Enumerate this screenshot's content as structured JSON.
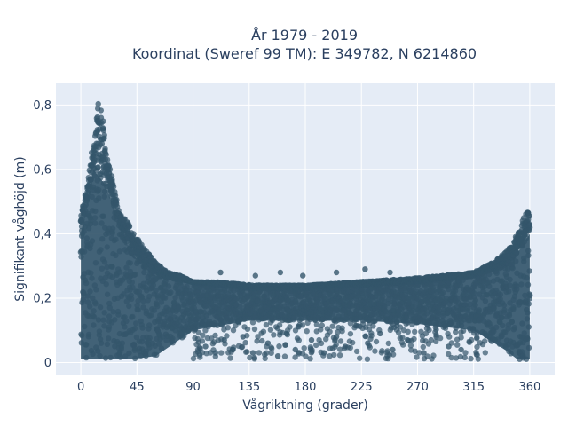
{
  "chart_data": {
    "type": "scatter",
    "title_line1": "År 1979 - 2019",
    "title_line2": "Koordinat (Sweref 99 TM): E 349782, N 6214860",
    "xlabel": "Vågriktning (grader)",
    "ylabel": "Signifikant våghöjd (m)",
    "xlim": [
      -20,
      380
    ],
    "ylim": [
      -0.04,
      0.87
    ],
    "xticks": [
      0,
      45,
      90,
      135,
      180,
      225,
      270,
      315,
      360
    ],
    "xtick_labels": [
      "0",
      "45",
      "90",
      "135",
      "180",
      "225",
      "270",
      "315",
      "360"
    ],
    "yticks": [
      0,
      0.2,
      0.4,
      0.6,
      0.8
    ],
    "ytick_labels": [
      "0",
      "0,2",
      "0,4",
      "0,6",
      "0,8"
    ],
    "grid": true,
    "colors": {
      "plot_background": "#e5ecf6",
      "grid": "#ffffff",
      "marker": "#34566b",
      "text": "#2a3f5f"
    },
    "upper_envelope": {
      "x": [
        0,
        5,
        10,
        13,
        15,
        17,
        20,
        25,
        30,
        40,
        50,
        60,
        70,
        80,
        90,
        110,
        140,
        180,
        220,
        260,
        290,
        315,
        330,
        340,
        345,
        350,
        355,
        358,
        360
      ],
      "y": [
        0.46,
        0.55,
        0.68,
        0.78,
        0.83,
        0.8,
        0.67,
        0.57,
        0.48,
        0.42,
        0.36,
        0.31,
        0.28,
        0.27,
        0.25,
        0.25,
        0.24,
        0.24,
        0.25,
        0.26,
        0.27,
        0.28,
        0.31,
        0.34,
        0.36,
        0.4,
        0.45,
        0.47,
        0.46
      ]
    },
    "dense_band": {
      "x": [
        0,
        10,
        20,
        40,
        60,
        90,
        135,
        180,
        225,
        270,
        315,
        340,
        350,
        360
      ],
      "lower": [
        0.01,
        0.01,
        0.01,
        0.01,
        0.02,
        0.1,
        0.13,
        0.13,
        0.13,
        0.12,
        0.1,
        0.04,
        0.01,
        0.01
      ],
      "upper": [
        0.4,
        0.6,
        0.55,
        0.34,
        0.27,
        0.25,
        0.23,
        0.23,
        0.24,
        0.25,
        0.27,
        0.3,
        0.34,
        0.4
      ]
    },
    "scattered_points": [
      {
        "x": 100,
        "y": 0.05
      },
      {
        "x": 108,
        "y": 0.03
      },
      {
        "x": 115,
        "y": 0.07
      },
      {
        "x": 122,
        "y": 0.04
      },
      {
        "x": 130,
        "y": 0.08
      },
      {
        "x": 138,
        "y": 0.03
      },
      {
        "x": 150,
        "y": 0.06
      },
      {
        "x": 158,
        "y": 0.02
      },
      {
        "x": 165,
        "y": 0.09
      },
      {
        "x": 172,
        "y": 0.04
      },
      {
        "x": 185,
        "y": 0.07
      },
      {
        "x": 195,
        "y": 0.03
      },
      {
        "x": 205,
        "y": 0.08
      },
      {
        "x": 212,
        "y": 0.05
      },
      {
        "x": 230,
        "y": 0.06
      },
      {
        "x": 240,
        "y": 0.09
      },
      {
        "x": 250,
        "y": 0.04
      },
      {
        "x": 262,
        "y": 0.07
      },
      {
        "x": 275,
        "y": 0.03
      },
      {
        "x": 285,
        "y": 0.08
      },
      {
        "x": 295,
        "y": 0.05
      },
      {
        "x": 305,
        "y": 0.04
      },
      {
        "x": 160,
        "y": 0.28
      },
      {
        "x": 205,
        "y": 0.28
      },
      {
        "x": 228,
        "y": 0.29
      },
      {
        "x": 178,
        "y": 0.27
      },
      {
        "x": 248,
        "y": 0.28
      },
      {
        "x": 140,
        "y": 0.27
      },
      {
        "x": 112,
        "y": 0.28
      }
    ]
  }
}
